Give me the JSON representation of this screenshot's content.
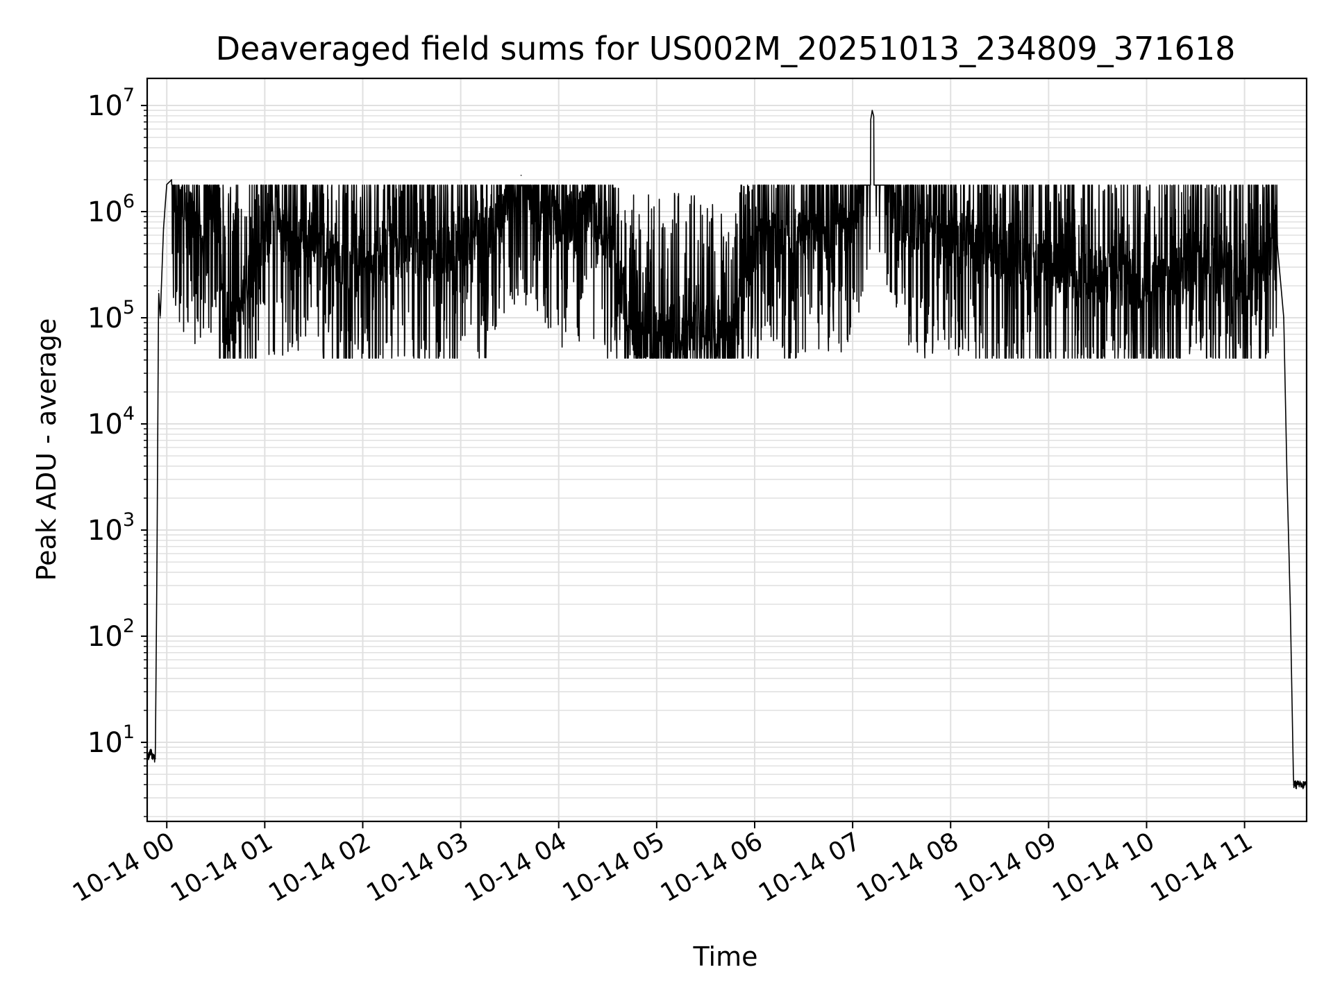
{
  "chart_data": {
    "type": "line",
    "title": "Deaveraged field sums for US002M_20251013_234809_371618",
    "xlabel": "Time",
    "ylabel": "Peak ADU - average",
    "y_scale": "log",
    "grid": true,
    "line_color": "#000000",
    "grid_color": "#e0e0e0",
    "x_tick_labels": [
      "10-14 00",
      "10-14 01",
      "10-14 02",
      "10-14 03",
      "10-14 04",
      "10-14 05",
      "10-14 06",
      "10-14 07",
      "10-14 08",
      "10-14 09",
      "10-14 10",
      "10-14 11"
    ],
    "x_tick_times": [
      "2025-10-14 00:00",
      "2025-10-14 01:00",
      "2025-10-14 02:00",
      "2025-10-14 03:00",
      "2025-10-14 04:00",
      "2025-10-14 05:00",
      "2025-10-14 06:00",
      "2025-10-14 07:00",
      "2025-10-14 08:00",
      "2025-10-14 09:00",
      "2025-10-14 10:00",
      "2025-10-14 11:00"
    ],
    "xlim": [
      "2025-10-13 23:48",
      "2025-10-14 11:38"
    ],
    "y_tick_labels": [
      {
        "base": "10",
        "exp": "1"
      },
      {
        "base": "10",
        "exp": "2"
      },
      {
        "base": "10",
        "exp": "3"
      },
      {
        "base": "10",
        "exp": "4"
      },
      {
        "base": "10",
        "exp": "5"
      },
      {
        "base": "10",
        "exp": "6"
      },
      {
        "base": "10",
        "exp": "7"
      }
    ],
    "y_tick_values": [
      10,
      100,
      1000,
      10000,
      100000,
      1000000,
      10000000
    ],
    "ylim": [
      1.8,
      18000000
    ],
    "series": [
      {
        "x": [
          "2025-10-13 23:48",
          "2025-10-13 23:50",
          "2025-10-13 23:53",
          "2025-10-13 23:54",
          "2025-10-13 23:55",
          "2025-10-13 23:56",
          "2025-10-13 23:58",
          "2025-10-14 00:00",
          "2025-10-14 00:03",
          "2025-10-14 00:08",
          "2025-10-14 00:15",
          "2025-10-14 00:20",
          "2025-10-14 00:30",
          "2025-10-14 00:35",
          "2025-10-14 00:40",
          "2025-10-14 01:00",
          "2025-10-14 01:15",
          "2025-10-14 01:30",
          "2025-10-14 01:45",
          "2025-10-14 02:00",
          "2025-10-14 02:30",
          "2025-10-14 03:00",
          "2025-10-14 03:20",
          "2025-10-14 03:37",
          "2025-10-14 04:00",
          "2025-10-14 04:20",
          "2025-10-14 04:30",
          "2025-10-14 04:45",
          "2025-10-14 05:00",
          "2025-10-14 05:20",
          "2025-10-14 05:45",
          "2025-10-14 06:00",
          "2025-10-14 06:30",
          "2025-10-14 07:00",
          "2025-10-14 07:12",
          "2025-10-14 07:30",
          "2025-10-14 08:00",
          "2025-10-14 08:30",
          "2025-10-14 09:00",
          "2025-10-14 09:30",
          "2025-10-14 10:00",
          "2025-10-14 10:30",
          "2025-10-14 10:45",
          "2025-10-14 11:00",
          "2025-10-14 11:10",
          "2025-10-14 11:15",
          "2025-10-14 11:20",
          "2025-10-14 11:24",
          "2025-10-14 11:26",
          "2025-10-14 11:28",
          "2025-10-14 11:30",
          "2025-10-14 11:35",
          "2025-10-14 11:38"
        ],
        "values": [
          7,
          8,
          7,
          500,
          180000,
          100000,
          700000,
          1800000,
          2000000,
          1000000,
          1000000,
          600000,
          1500000,
          80000,
          90000,
          600000,
          700000,
          600000,
          300000,
          400000,
          400000,
          500000,
          700000,
          2200000,
          800000,
          1000000,
          600000,
          80000,
          70000,
          80000,
          60000,
          500000,
          600000,
          700000,
          9000000,
          700000,
          600000,
          400000,
          300000,
          250000,
          200000,
          300000,
          350000,
          200000,
          400000,
          600000,
          500000,
          100000,
          3000,
          200,
          4,
          4,
          4
        ]
      }
    ]
  }
}
